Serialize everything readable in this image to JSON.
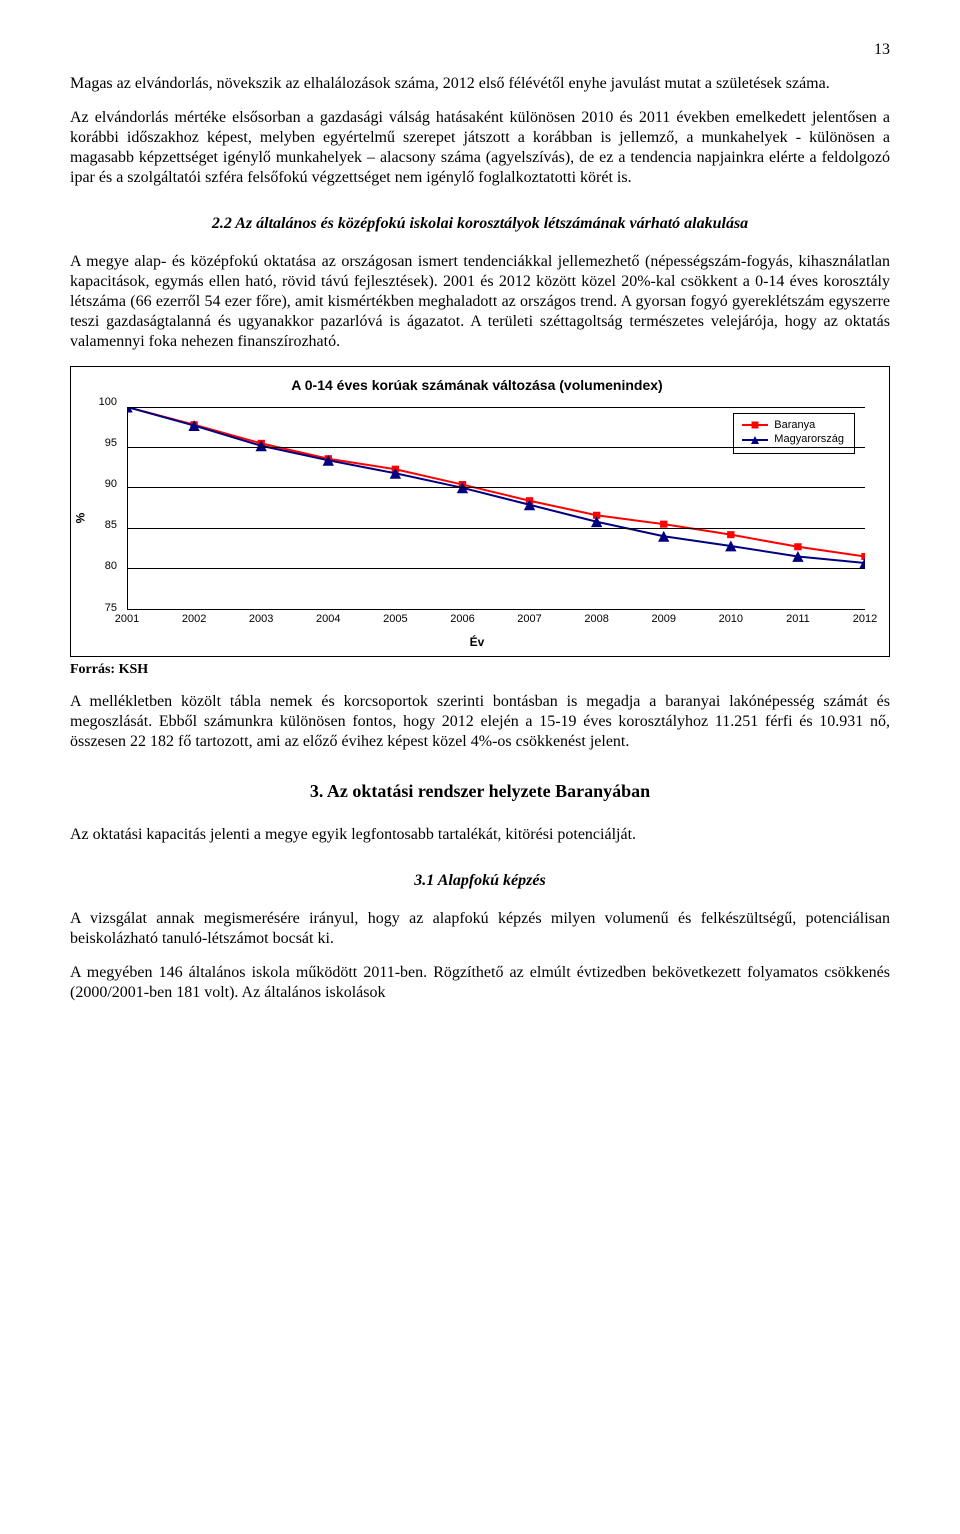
{
  "page_number": "13",
  "paragraphs": {
    "p1": "Magas az elvándorlás, növekszik az elhalálozások száma, 2012 első félévétől enyhe javulást mutat a születések száma.",
    "p2": "Az elvándorlás mértéke elsősorban a gazdasági válság hatásaként különösen 2010 és 2011 években emelkedett jelentősen a korábbi időszakhoz képest, melyben egyértelmű szerepet játszott a korábban is jellemző, a munkahelyek - különösen a magasabb képzettséget igénylő munkahelyek – alacsony száma (agyelszívás), de ez a tendencia napjainkra elérte a feldolgozó ipar és a szolgáltatói szféra felsőfokú végzettséget nem igénylő foglalkoztatotti körét is.",
    "title22": "2.2 Az általános és középfokú iskolai korosztályok létszámának várható alakulása",
    "p3": "A megye alap- és középfokú oktatása az országosan ismert tendenciákkal jellemezhető (népességszám-fogyás, kihasználatlan kapacitások, egymás ellen ható, rövid távú fejlesztések). 2001 és 2012 között közel 20%-kal csökkent a 0-14 éves korosztály létszáma (66 ezerről 54 ezer főre), amit kismértékben meghaladott az országos trend. A gyorsan fogyó gyereklétszám egyszerre teszi gazdaságtalanná és ugyanakkor pazarlóvá is ágazatot. A területi széttagoltság természetes velejárója, hogy az oktatás valamennyi foka nehezen finanszírozható.",
    "source": "Forrás: KSH",
    "p4": "A mellékletben közölt tábla nemek és korcsoportok szerinti bontásban is megadja a baranyai lakónépesség számát és megoszlását. Ebből számunkra különösen fontos, hogy 2012 elején a 15-19 éves korosztályhoz 11.251 férfi és 10.931 nő, összesen 22 182 fő tartozott, ami az előző évihez képest közel 4%-os csökkenést jelent.",
    "title3": "3. Az oktatási rendszer helyzete Baranyában",
    "p5": "Az oktatási kapacitás jelenti a megye egyik legfontosabb tartalékát, kitörési potenciálját.",
    "title31": "3.1 Alapfokú képzés",
    "p6": "A vizsgálat annak megismerésére irányul, hogy az alapfokú képzés milyen volumenű és felkészültségű, potenciálisan beiskolázható tanuló-létszámot bocsát ki.",
    "p7": "A megyében 146 általános iskola működött 2011-ben. Rögzíthető az elmúlt évtizedben bekövetkezett folyamatos csökkenés (2000/2001-ben 181 volt). Az általános iskolások"
  },
  "chart": {
    "type": "line",
    "title": "A 0-14 éves korúak számának változása (volumenindex)",
    "x_label": "Év",
    "y_label": "%",
    "ylim": [
      75,
      100
    ],
    "ytick_step": 5,
    "yticks": [
      100,
      95,
      90,
      85,
      80,
      75
    ],
    "xticks": [
      "2001",
      "2002",
      "2003",
      "2004",
      "2005",
      "2006",
      "2007",
      "2008",
      "2009",
      "2010",
      "2011",
      "2012"
    ],
    "series": [
      {
        "name": "Baranya",
        "color": "#ff0000",
        "marker": "square",
        "values": [
          100,
          97.8,
          95.5,
          93.6,
          92.3,
          90.4,
          88.4,
          86.6,
          85.5,
          84.2,
          82.7,
          81.5
        ]
      },
      {
        "name": "Magyarország",
        "color": "#000080",
        "marker": "triangle",
        "values": [
          100,
          97.7,
          95.2,
          93.4,
          91.8,
          90.0,
          87.9,
          85.8,
          84.0,
          82.8,
          81.5,
          80.7
        ]
      }
    ],
    "legend_labels": {
      "s0": "Baranya",
      "s1": "Magyarország"
    },
    "background_color": "#ffffff",
    "grid_color": "#000000",
    "line_width": 2,
    "marker_size": 7
  }
}
